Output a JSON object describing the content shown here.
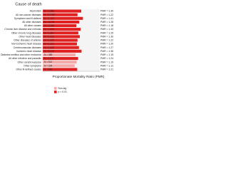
{
  "chart_data": {
    "type": "bar",
    "orientation": "horizontal",
    "title": "Cause of death",
    "x_label": "Proportionate Mortality Ratio (PMR)",
    "categories": [
      "Alcoholism",
      "All non-cancer diseases",
      "Symptoms and ill-defined",
      "All other diseases",
      "All other causes",
      "Chronic liver disease and cirrhosis",
      "Other chronic lung diseases",
      "Other heart diseases",
      "Other diseases of arteries",
      "Non-ischemic heart disease",
      "Cerebrovascular diseases",
      "Ischemic heart disease",
      "Diabetes mellitus and other endocrine",
      "All other infective and parasitic",
      "Other cerebrovascular",
      "Other symptoms",
      "Other ill-defined causes"
    ],
    "values": [
      1.35,
      1.22,
      1.41,
      1.28,
      1.18,
      1.33,
      1.25,
      1.3,
      1.22,
      1.2,
      1.27,
      1.36,
      1.15,
      1.24,
      1.19,
      1.12,
      1.21
    ],
    "value_labels": [
      "PMR = 1.35",
      "PMR = 1.22",
      "PMR = 1.41",
      "PMR = 1.28",
      "PMR = 1.18",
      "PMR = 1.33",
      "PMR = 1.25",
      "PMR = 1.30",
      "PMR = 1.22",
      "PMR = 1.20",
      "PMR = 1.27",
      "PMR = 1.36",
      "PMR = 1.15",
      "PMR = 1.24",
      "PMR = 1.19",
      "PMR = 1.12",
      "PMR = 1.21"
    ],
    "count_labels": [
      "N = 1,085",
      "N = 17,587",
      "N = 1,153",
      "N = 3,276",
      "N = 1,098",
      "N = 2,444",
      "N = 1,307",
      "N = 1,912",
      "N = 1,015",
      "N = 1,231",
      "N = 1,463",
      "N = 6,219",
      "N = 389",
      "N = 1,077",
      "N = 512",
      "N = 204",
      "N = 640"
    ],
    "colors": [
      "#e02020",
      "#e02020",
      "#e02020",
      "#e02020",
      "#e02020",
      "#e02020",
      "#e02020",
      "#e02020",
      "#e02020",
      "#e02020",
      "#e02020",
      "#e02020",
      "#f4a9a9",
      "#e02020",
      "#f4a9a9",
      "#f4a9a9",
      "#e02020"
    ],
    "xlim": [
      0,
      2
    ],
    "legend": [
      {
        "name": "Non-sig",
        "color": "#f4a9a9"
      },
      {
        "name": "p < 0.01",
        "color": "#e02020"
      }
    ],
    "legend_position": "bottom-left"
  }
}
